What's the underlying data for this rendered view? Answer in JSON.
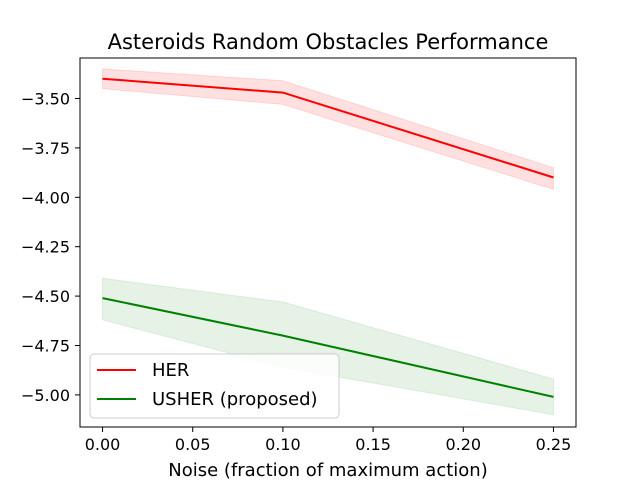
{
  "chart_data": {
    "type": "line",
    "title": "Asteroids Random Obstacles Performance",
    "xlabel": "Noise (fraction of maximum action)",
    "ylabel": "",
    "x": [
      0.0,
      0.1,
      0.25
    ],
    "xlim": [
      -0.0125,
      0.2625
    ],
    "ylim": [
      -5.1625,
      -3.295
    ],
    "x_ticks": [
      "0.00",
      "0.05",
      "0.10",
      "0.15",
      "0.20",
      "0.25"
    ],
    "y_ticks": [
      "-3.50",
      "-3.75",
      "-4.00",
      "-4.25",
      "-4.50",
      "-4.75",
      "-5.00"
    ],
    "grid": false,
    "legend_position": "lower-left",
    "series": [
      {
        "name": "HER",
        "color": "#ff0000",
        "values": [
          -3.4,
          -3.47,
          -3.9
        ],
        "lower": [
          -3.45,
          -3.53,
          -3.96
        ],
        "upper": [
          -3.35,
          -3.41,
          -3.85
        ]
      },
      {
        "name": "USHER (proposed)",
        "color": "#008000",
        "values": [
          -4.51,
          -4.7,
          -5.01
        ],
        "lower": [
          -4.62,
          -4.86,
          -5.1
        ],
        "upper": [
          -4.41,
          -4.53,
          -4.92
        ]
      }
    ]
  }
}
